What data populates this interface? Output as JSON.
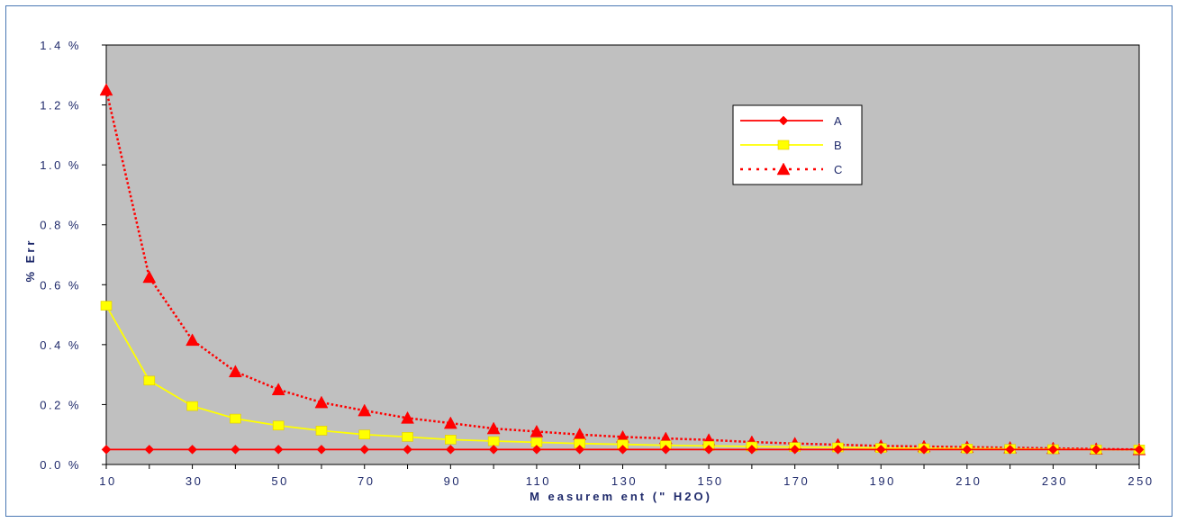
{
  "chart_data": {
    "type": "line",
    "title": "",
    "xlabel": "M easurem ent (\" H2O)",
    "ylabel": "% Err",
    "xlim": [
      10,
      250
    ],
    "ylim": [
      0.0,
      1.4
    ],
    "x_ticks": [
      "10",
      "30",
      "50",
      "70",
      "90",
      "110",
      "130",
      "150",
      "170",
      "190",
      "210",
      "230",
      "250"
    ],
    "y_ticks": [
      "0.0 %",
      "0.2 %",
      "0.4 %",
      "0.6 %",
      "0.8 %",
      "1.0 %",
      "1.2 %",
      "1.4 %"
    ],
    "y_tick_values": [
      0.0,
      0.2,
      0.4,
      0.6,
      0.8,
      1.0,
      1.2,
      1.4
    ],
    "x_tick_values": [
      10,
      30,
      50,
      70,
      90,
      110,
      130,
      150,
      170,
      190,
      210,
      230,
      250
    ],
    "grid": false,
    "plot_background": "#c0c0c0",
    "legend_position": "top-right",
    "x": [
      10,
      20,
      30,
      40,
      50,
      60,
      70,
      80,
      90,
      100,
      110,
      120,
      130,
      140,
      150,
      160,
      170,
      180,
      190,
      200,
      210,
      220,
      230,
      240,
      250
    ],
    "series": [
      {
        "name": "A",
        "color": "#ff0000",
        "line_style": "solid",
        "marker": "diamond",
        "values": [
          0.05,
          0.05,
          0.05,
          0.05,
          0.05,
          0.05,
          0.05,
          0.05,
          0.05,
          0.05,
          0.05,
          0.05,
          0.05,
          0.05,
          0.05,
          0.05,
          0.05,
          0.05,
          0.05,
          0.05,
          0.05,
          0.05,
          0.05,
          0.05,
          0.05
        ]
      },
      {
        "name": "B",
        "color": "#ffff00",
        "line_style": "solid",
        "marker": "square",
        "values": [
          0.53,
          0.28,
          0.195,
          0.153,
          0.13,
          0.113,
          0.1,
          0.092,
          0.083,
          0.078,
          0.074,
          0.07,
          0.067,
          0.064,
          0.062,
          0.06,
          0.058,
          0.057,
          0.055,
          0.054,
          0.053,
          0.052,
          0.051,
          0.05,
          0.05
        ]
      },
      {
        "name": "C",
        "color": "#ff0000",
        "line_style": "dotted",
        "marker": "triangle",
        "values": [
          1.25,
          0.625,
          0.415,
          0.31,
          0.25,
          0.207,
          0.18,
          0.155,
          0.138,
          0.12,
          0.11,
          0.1,
          0.092,
          0.087,
          0.082,
          0.075,
          0.07,
          0.066,
          0.062,
          0.06,
          0.058,
          0.056,
          0.054,
          0.052,
          0.05
        ]
      }
    ]
  }
}
